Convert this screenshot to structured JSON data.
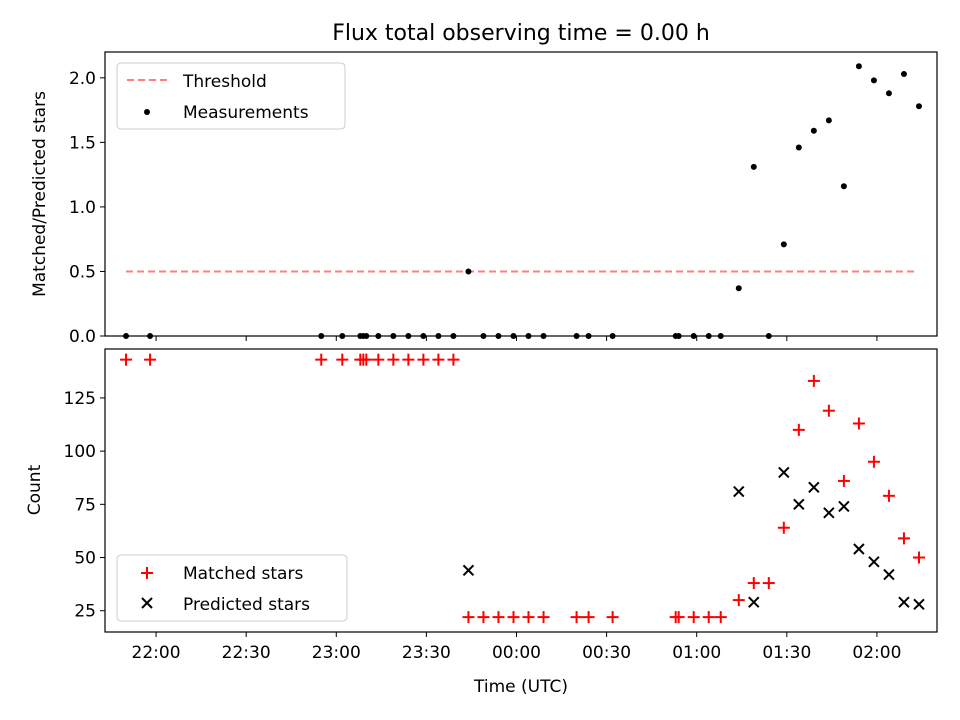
{
  "figure": {
    "title": "Flux total observing time = 0.00 h"
  },
  "chart_data": [
    {
      "type": "scatter",
      "title": "Flux total observing time = 0.00 h",
      "ylabel": "Matched/Predicted stars",
      "xlabel": "",
      "xlim": [
        "21:43",
        "02:20"
      ],
      "ylim": [
        0,
        2.2
      ],
      "yticks": [
        "0.0",
        "0.5",
        "1.0",
        "1.5",
        "2.0"
      ],
      "legend_position": "upper-left",
      "series": [
        {
          "name": "Threshold",
          "kind": "dashed-line",
          "color": "#ff7f7f",
          "points": [
            [
              "21:50",
              0.5
            ],
            [
              "02:13",
              0.5
            ]
          ]
        },
        {
          "name": "Measurements",
          "kind": "dot",
          "color": "#000000",
          "points": [
            [
              "21:50",
              0.0
            ],
            [
              "21:58",
              0.0
            ],
            [
              "22:55",
              0.0
            ],
            [
              "23:02",
              0.0
            ],
            [
              "23:08",
              0.0
            ],
            [
              "23:09",
              0.0
            ],
            [
              "23:10",
              0.0
            ],
            [
              "23:14",
              0.0
            ],
            [
              "23:19",
              0.0
            ],
            [
              "23:24",
              0.0
            ],
            [
              "23:29",
              0.0
            ],
            [
              "23:34",
              0.0
            ],
            [
              "23:39",
              0.0
            ],
            [
              "23:44",
              0.5
            ],
            [
              "23:49",
              0.0
            ],
            [
              "23:54",
              0.0
            ],
            [
              "23:59",
              0.0
            ],
            [
              "00:04",
              0.0
            ],
            [
              "00:09",
              0.0
            ],
            [
              "00:20",
              0.0
            ],
            [
              "00:24",
              0.0
            ],
            [
              "00:32",
              0.0
            ],
            [
              "00:53",
              0.0
            ],
            [
              "00:54",
              0.0
            ],
            [
              "00:59",
              0.0
            ],
            [
              "01:04",
              0.0
            ],
            [
              "01:08",
              0.0
            ],
            [
              "01:14",
              0.37
            ],
            [
              "01:19",
              1.31
            ],
            [
              "01:24",
              0.0
            ],
            [
              "01:29",
              0.71
            ],
            [
              "01:34",
              1.46
            ],
            [
              "01:39",
              1.59
            ],
            [
              "01:44",
              1.67
            ],
            [
              "01:49",
              1.16
            ],
            [
              "01:54",
              2.09
            ],
            [
              "01:59",
              1.98
            ],
            [
              "02:04",
              1.88
            ],
            [
              "02:09",
              2.03
            ],
            [
              "02:14",
              1.78
            ]
          ]
        }
      ]
    },
    {
      "type": "scatter",
      "title": "",
      "ylabel": "Count",
      "xlabel": "Time (UTC)",
      "xlim": [
        "21:43",
        "02:20"
      ],
      "ylim": [
        15,
        148
      ],
      "yticks": [
        "25",
        "50",
        "75",
        "100",
        "125"
      ],
      "xticks": [
        "22:00",
        "22:30",
        "23:00",
        "23:30",
        "00:00",
        "00:30",
        "01:00",
        "01:30",
        "02:00"
      ],
      "legend_position": "lower-left",
      "series": [
        {
          "name": "Matched stars",
          "kind": "plus",
          "color": "#ff0000",
          "points": [
            [
              "21:50",
              143
            ],
            [
              "21:58",
              143
            ],
            [
              "22:55",
              143
            ],
            [
              "23:02",
              143
            ],
            [
              "23:08",
              143
            ],
            [
              "23:09",
              143
            ],
            [
              "23:10",
              143
            ],
            [
              "23:14",
              143
            ],
            [
              "23:19",
              143
            ],
            [
              "23:24",
              143
            ],
            [
              "23:29",
              143
            ],
            [
              "23:34",
              143
            ],
            [
              "23:39",
              143
            ],
            [
              "23:44",
              22
            ],
            [
              "23:49",
              22
            ],
            [
              "23:54",
              22
            ],
            [
              "23:59",
              22
            ],
            [
              "00:04",
              22
            ],
            [
              "00:09",
              22
            ],
            [
              "00:20",
              22
            ],
            [
              "00:24",
              22
            ],
            [
              "00:32",
              22
            ],
            [
              "00:53",
              22
            ],
            [
              "00:54",
              22
            ],
            [
              "00:59",
              22
            ],
            [
              "01:04",
              22
            ],
            [
              "01:08",
              22
            ],
            [
              "01:14",
              30
            ],
            [
              "01:19",
              38
            ],
            [
              "01:24",
              38
            ],
            [
              "01:29",
              64
            ],
            [
              "01:34",
              110
            ],
            [
              "01:39",
              133
            ],
            [
              "01:44",
              119
            ],
            [
              "01:49",
              86
            ],
            [
              "01:54",
              113
            ],
            [
              "01:59",
              95
            ],
            [
              "02:04",
              79
            ],
            [
              "02:09",
              59
            ],
            [
              "02:14",
              50
            ]
          ]
        },
        {
          "name": "Predicted stars",
          "kind": "x",
          "color": "#000000",
          "points": [
            [
              "23:44",
              44
            ],
            [
              "01:14",
              81
            ],
            [
              "01:19",
              29
            ],
            [
              "01:29",
              90
            ],
            [
              "01:34",
              75
            ],
            [
              "01:39",
              83
            ],
            [
              "01:44",
              71
            ],
            [
              "01:49",
              74
            ],
            [
              "01:54",
              54
            ],
            [
              "01:59",
              48
            ],
            [
              "02:04",
              42
            ],
            [
              "02:09",
              29
            ],
            [
              "02:14",
              28
            ]
          ]
        }
      ]
    }
  ]
}
